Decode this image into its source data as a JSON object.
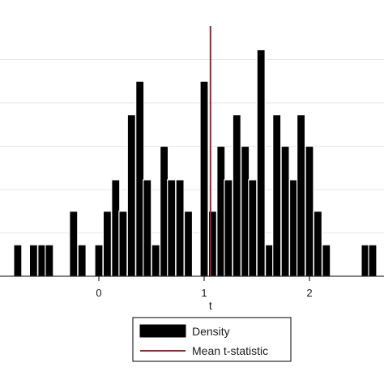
{
  "chart_data": {
    "type": "bar",
    "xlabel": "t",
    "x_ticks": [
      0,
      1,
      2
    ],
    "ylim": [
      0,
      1.24
    ],
    "grid": true,
    "legend_position": "bottom",
    "legend": {
      "density_label": "Density",
      "mean_label": "Mean t-statistic"
    },
    "mean_t_statistic": 1.06,
    "bin_width": 0.0769,
    "bin_centers": [
      -0.77,
      -0.62,
      -0.54,
      -0.47,
      -0.24,
      -0.16,
      0.0,
      0.08,
      0.16,
      0.23,
      0.31,
      0.39,
      0.46,
      0.54,
      0.62,
      0.69,
      0.77,
      0.85,
      0.93,
      1.0,
      1.08,
      1.16,
      1.23,
      1.31,
      1.39,
      1.46,
      1.54,
      1.62,
      1.69,
      1.77,
      1.85,
      1.92,
      2.0,
      2.08,
      2.16,
      2.23,
      2.53,
      2.6
    ],
    "density": [
      0.15,
      0.15,
      0.15,
      0.15,
      0.31,
      0.15,
      0.15,
      0.31,
      0.46,
      0.31,
      0.77,
      0.93,
      0.46,
      0.15,
      0.62,
      0.46,
      0.46,
      0.31,
      0.0,
      0.93,
      0.31,
      0.62,
      0.46,
      0.77,
      0.62,
      0.46,
      1.08,
      0.15,
      0.77,
      0.62,
      0.46,
      0.77,
      0.62,
      0.31,
      0.15,
      0.0,
      0.15,
      0.15
    ],
    "colors": {
      "bar_fill": "#000000",
      "bar_edge": "#ffffff",
      "mean_line": "#8b2c35",
      "grid": "#e6e6e6",
      "axis": "#000000"
    }
  }
}
